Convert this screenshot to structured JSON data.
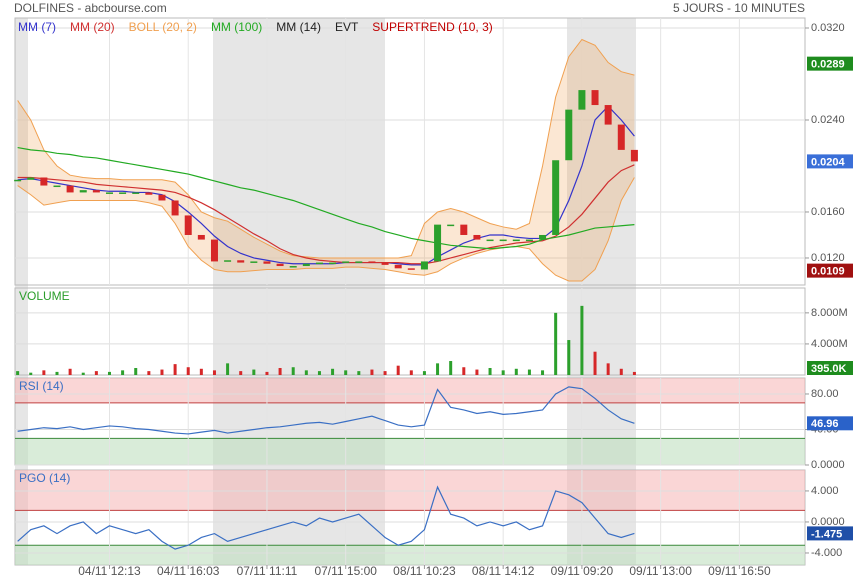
{
  "header": {
    "title": "DOLFINES - abcbourse.com",
    "period": "5 JOURS - 10 MINUTES"
  },
  "chart_data": [
    {
      "type": "candlestick",
      "close": [
        0.0188,
        0.019,
        0.0183,
        0.0183,
        0.0177,
        0.0179,
        0.0177,
        0.0177,
        0.0177,
        0.0177,
        0.0175,
        0.017,
        0.0157,
        0.014,
        0.0136,
        0.0117,
        0.0118,
        0.0116,
        0.0117,
        0.0115,
        0.0113,
        0.0113,
        0.0115,
        0.0116,
        0.0116,
        0.0117,
        0.0117,
        0.0116,
        0.0114,
        0.0111,
        0.011,
        0.0117,
        0.0149,
        0.0149,
        0.014,
        0.0136,
        0.0136,
        0.0136,
        0.0136,
        0.0136,
        0.014,
        0.0205,
        0.0249,
        0.0266,
        0.0253,
        0.0236,
        0.0214,
        0.0204
      ],
      "series": [
        {
          "name": "MM (7)",
          "color": "#3333cc",
          "values": [
            0.0188,
            0.0189,
            0.0187,
            0.0185,
            0.0183,
            0.0181,
            0.0179,
            0.0178,
            0.0178,
            0.0177,
            0.0177,
            0.0175,
            0.0169,
            0.016,
            0.015,
            0.0139,
            0.013,
            0.0124,
            0.012,
            0.0118,
            0.0116,
            0.0115,
            0.0115,
            0.0115,
            0.0115,
            0.0116,
            0.0116,
            0.0116,
            0.0116,
            0.0115,
            0.0114,
            0.0114,
            0.0121,
            0.0127,
            0.0133,
            0.0137,
            0.014,
            0.014,
            0.0138,
            0.0137,
            0.0137,
            0.0146,
            0.017,
            0.02,
            0.024,
            0.0252,
            0.024,
            0.0226
          ]
        },
        {
          "name": "MM (20)",
          "color": "#d03030",
          "values": [
            0.019,
            0.019,
            0.0189,
            0.0188,
            0.0187,
            0.0186,
            0.0184,
            0.0183,
            0.0182,
            0.0181,
            0.018,
            0.0179,
            0.0177,
            0.0173,
            0.0168,
            0.0162,
            0.0155,
            0.0148,
            0.0141,
            0.0135,
            0.0128,
            0.0123,
            0.012,
            0.0118,
            0.0117,
            0.0116,
            0.0116,
            0.0116,
            0.0116,
            0.0116,
            0.0115,
            0.0115,
            0.0117,
            0.012,
            0.0123,
            0.0126,
            0.0129,
            0.0131,
            0.0133,
            0.0134,
            0.0135,
            0.0139,
            0.0147,
            0.0158,
            0.0172,
            0.0186,
            0.0196,
            0.0201
          ]
        },
        {
          "name": "BOLL (20, 2)",
          "color": "#f0a050",
          "upper": [
            0.0257,
            0.024,
            0.0214,
            0.02,
            0.0192,
            0.019,
            0.0189,
            0.0189,
            0.0188,
            0.0188,
            0.0188,
            0.0188,
            0.0186,
            0.0175,
            0.016,
            0.0155,
            0.0152,
            0.0145,
            0.0138,
            0.0132,
            0.0126,
            0.0122,
            0.0121,
            0.012,
            0.012,
            0.012,
            0.012,
            0.012,
            0.012,
            0.012,
            0.0122,
            0.015,
            0.016,
            0.0163,
            0.016,
            0.0155,
            0.015,
            0.0147,
            0.0145,
            0.015,
            0.02,
            0.026,
            0.0295,
            0.031,
            0.0305,
            0.029,
            0.0282,
            0.0279
          ],
          "lower": [
            0.0183,
            0.0175,
            0.0166,
            0.0168,
            0.017,
            0.017,
            0.017,
            0.017,
            0.017,
            0.017,
            0.0168,
            0.0165,
            0.015,
            0.013,
            0.0118,
            0.011,
            0.0108,
            0.0108,
            0.0109,
            0.011,
            0.011,
            0.011,
            0.0111,
            0.0111,
            0.0111,
            0.0112,
            0.0112,
            0.0111,
            0.011,
            0.0108,
            0.0106,
            0.0105,
            0.0108,
            0.0115,
            0.012,
            0.0124,
            0.0127,
            0.0129,
            0.013,
            0.0128,
            0.0115,
            0.0105,
            0.01,
            0.01,
            0.011,
            0.0135,
            0.017,
            0.019
          ]
        },
        {
          "name": "MM (100)",
          "color": "#22aa22",
          "values": [
            0.0216,
            0.0214,
            0.0213,
            0.0211,
            0.021,
            0.0208,
            0.0207,
            0.0205,
            0.0203,
            0.0201,
            0.0199,
            0.0197,
            0.0195,
            0.0193,
            0.019,
            0.0187,
            0.0184,
            0.0181,
            0.0179,
            0.0176,
            0.0173,
            0.017,
            0.0166,
            0.0162,
            0.0158,
            0.0154,
            0.015,
            0.0147,
            0.0143,
            0.014,
            0.0137,
            0.0135,
            0.0133,
            0.0131,
            0.013,
            0.0129,
            0.0128,
            0.0129,
            0.013,
            0.0132,
            0.0136,
            0.0138,
            0.014,
            0.0143,
            0.0146,
            0.0147,
            0.0148,
            0.0149
          ]
        },
        {
          "name": "MM (14)",
          "color": "#222222"
        },
        {
          "name": "EVT",
          "color": "#222222"
        },
        {
          "name": "SUPERTREND (10, 3)",
          "color": "#c00000"
        }
      ],
      "up_color": "#2ca02c",
      "down_color": "#d62728",
      "ylim": [
        0.00965,
        0.03287
      ],
      "yticks": [
        {
          "value": 0.032,
          "label": "0.0320"
        },
        {
          "value": 0.024,
          "label": "0.0240"
        },
        {
          "value": 0.016,
          "label": "0.0160"
        },
        {
          "value": 0.012,
          "label": "0.0120"
        }
      ],
      "badges": [
        {
          "value": 0.0289,
          "color": "#1e8c1e"
        },
        {
          "value": 0.0204,
          "color": "#3a6fd8"
        },
        {
          "value": 0.0109,
          "color": "#a01010"
        }
      ],
      "grid": true
    },
    {
      "type": "bar",
      "title": "VOLUME",
      "values": [
        0.5,
        0.3,
        0.6,
        0.4,
        0.8,
        0.3,
        0.5,
        0.4,
        0.6,
        0.9,
        0.5,
        0.7,
        1.4,
        1.0,
        0.8,
        0.6,
        1.5,
        0.5,
        0.7,
        0.4,
        0.9,
        1.0,
        0.6,
        0.5,
        0.8,
        0.6,
        0.5,
        0.7,
        0.5,
        1.2,
        0.6,
        0.5,
        1.5,
        1.8,
        1.0,
        0.7,
        0.9,
        0.6,
        0.8,
        0.7,
        0.6,
        8.0,
        4.5,
        8.9,
        3.0,
        1.5,
        0.8,
        0.395
      ],
      "ylim": [
        0,
        11.2
      ],
      "yticks": [
        {
          "value": 8,
          "label": "8.000M"
        },
        {
          "value": 4,
          "label": "4.000M"
        }
      ],
      "badges": [
        {
          "value": 0.395,
          "label": "395.0K",
          "color": "#1e8c1e"
        }
      ],
      "grid": true
    },
    {
      "type": "line",
      "title": "RSI (14)",
      "color": "#3a6fc4",
      "values": [
        38,
        40,
        42,
        41,
        43,
        40,
        42,
        44,
        43,
        41,
        40,
        38,
        36,
        35,
        37,
        39,
        36,
        38,
        40,
        42,
        43,
        45,
        47,
        48,
        46,
        49,
        52,
        55,
        50,
        45,
        43,
        45,
        85,
        65,
        62,
        58,
        60,
        57,
        58,
        60,
        62,
        80,
        88,
        86,
        75,
        62,
        52,
        46.96
      ],
      "levels": [
        30,
        70
      ],
      "ylim": [
        0,
        98
      ],
      "yticks": [
        {
          "value": 80,
          "label": "80.00"
        },
        {
          "value": 40,
          "label": "40.00"
        },
        {
          "value": 0,
          "label": "0.0000"
        }
      ],
      "badges": [
        {
          "value": 46.96,
          "color": "#2a62c9"
        }
      ],
      "grid": true
    },
    {
      "type": "line",
      "title": "PGO (14)",
      "color": "#3a6fc4",
      "values": [
        -2.5,
        -1.0,
        -0.5,
        -1.5,
        -0.5,
        0.0,
        -1.5,
        -0.5,
        -1.0,
        -1.5,
        -1.0,
        -2.5,
        -3.5,
        -3.0,
        -2.0,
        -1.5,
        -2.5,
        -2.0,
        -1.5,
        -1.0,
        -0.5,
        0.0,
        -0.5,
        0.5,
        0.0,
        0.5,
        1.0,
        -0.5,
        -2.0,
        -3.0,
        -2.5,
        -1.0,
        4.5,
        1.0,
        0.5,
        -0.5,
        0.0,
        -0.5,
        0.0,
        -1.0,
        -0.5,
        4.0,
        3.5,
        2.5,
        0.5,
        -1.5,
        -2.0,
        -1.475
      ],
      "levels": [
        -3,
        1.5
      ],
      "ylim": [
        -5.55,
        6.7
      ],
      "yticks": [
        {
          "value": 4,
          "label": "4.000"
        },
        {
          "value": 0,
          "label": "0.0000"
        },
        {
          "value": -4,
          "label": "-4.000"
        }
      ],
      "badges": [
        {
          "value": -1.475,
          "color": "#1f4fa8"
        }
      ],
      "xlim": [
        -0.2,
        60
      ],
      "xticks": [
        {
          "value": 7,
          "label": "04/11 12:13"
        },
        {
          "value": 13,
          "label": "04/11 16:03"
        },
        {
          "value": 19,
          "label": "07/11 11:11"
        },
        {
          "value": 25,
          "label": "07/11 15:00"
        },
        {
          "value": 31,
          "label": "08/11 10:23"
        },
        {
          "value": 37,
          "label": "08/11 14:12"
        },
        {
          "value": 43,
          "label": "09/11 09:20"
        },
        {
          "value": 49,
          "label": "09/11 13:00"
        },
        {
          "value": 55,
          "label": "09/11 16:50"
        }
      ],
      "grid": true
    }
  ]
}
